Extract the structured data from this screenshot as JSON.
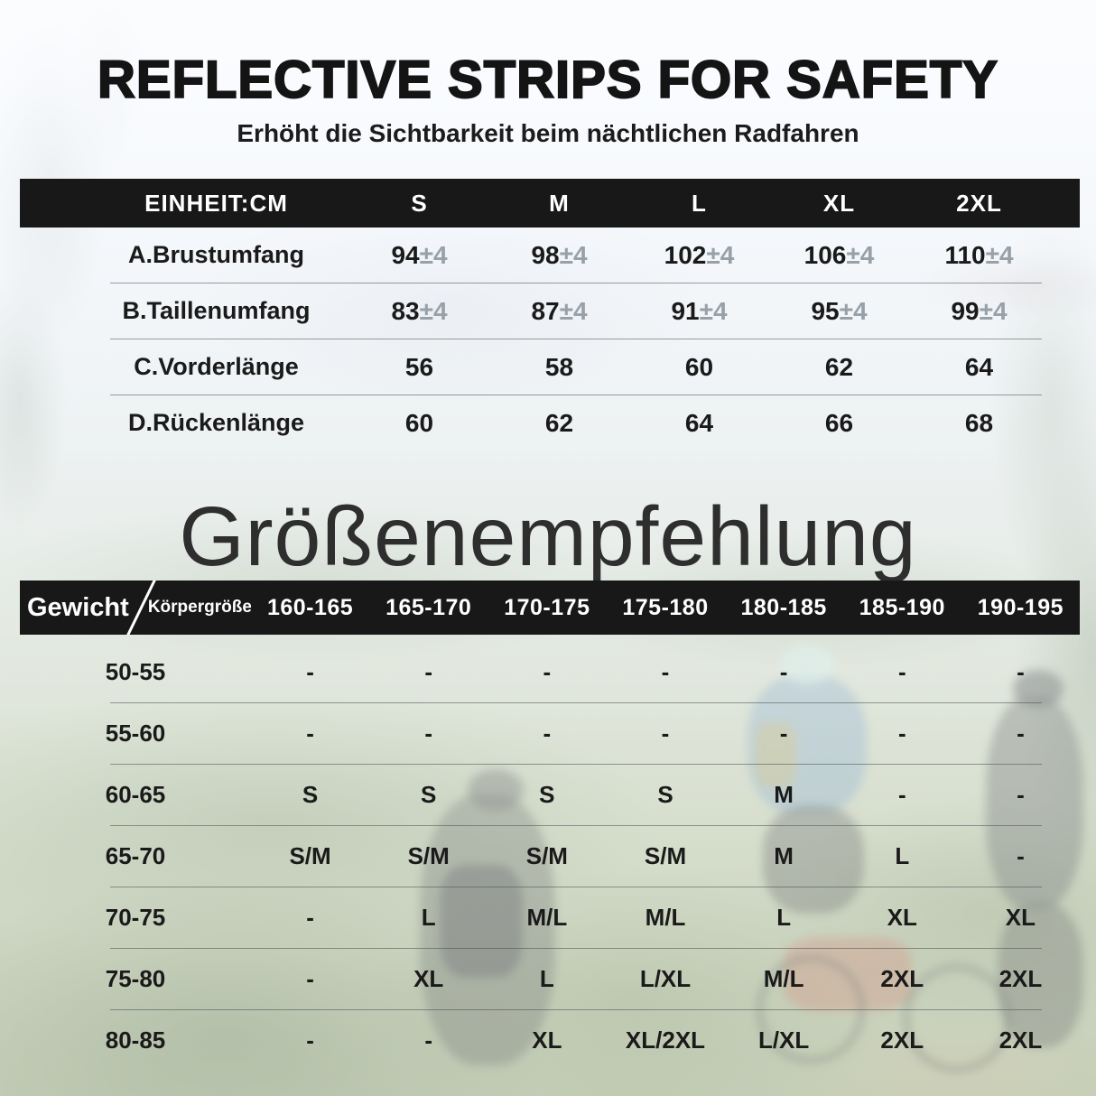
{
  "page": {
    "title": "REFLECTIVE STRIPS FOR SAFETY",
    "subtitle": "Erhöht die Sichtbarkeit beim nächtlichen Radfahren",
    "section2_title": "Größenempfehlung"
  },
  "colors": {
    "header_bar": "#181818",
    "header_text": "#ffffff",
    "body_text": "#1a1a1a",
    "tolerance_text": "#98a0a8"
  },
  "size_table": {
    "unit_label": "EINHEIT:CM",
    "columns": [
      "S",
      "M",
      "L",
      "XL",
      "2XL"
    ],
    "rows": [
      {
        "label": "A.Brustumfang",
        "values": [
          "94",
          "98",
          "102",
          "106",
          "110"
        ],
        "tolerance": "±4"
      },
      {
        "label": "B.Taillenumfang",
        "values": [
          "83",
          "87",
          "91",
          "95",
          "99"
        ],
        "tolerance": "±4"
      },
      {
        "label": "C.Vorderlänge",
        "values": [
          "56",
          "58",
          "60",
          "62",
          "64"
        ],
        "tolerance": ""
      },
      {
        "label": "D.Rückenlänge",
        "values": [
          "60",
          "62",
          "64",
          "66",
          "68"
        ],
        "tolerance": ""
      }
    ]
  },
  "recommendation_table": {
    "weight_label": "Gewicht",
    "height_label": "Körpergröße",
    "columns": [
      "160-165",
      "165-170",
      "170-175",
      "175-180",
      "180-185",
      "185-190",
      "190-195"
    ],
    "rows": [
      {
        "label": "50-55",
        "values": [
          "-",
          "-",
          "-",
          "-",
          "-",
          "-",
          "-"
        ]
      },
      {
        "label": "55-60",
        "values": [
          "-",
          "-",
          "-",
          "-",
          "-",
          "-",
          "-"
        ]
      },
      {
        "label": "60-65",
        "values": [
          "S",
          "S",
          "S",
          "S",
          "M",
          "-",
          "-"
        ]
      },
      {
        "label": "65-70",
        "values": [
          "S/M",
          "S/M",
          "S/M",
          "S/M",
          "M",
          "L",
          "-"
        ]
      },
      {
        "label": "70-75",
        "values": [
          "-",
          "L",
          "M/L",
          "M/L",
          "L",
          "XL",
          "XL"
        ]
      },
      {
        "label": "75-80",
        "values": [
          "-",
          "XL",
          "L",
          "L/XL",
          "M/L",
          "2XL",
          "2XL"
        ]
      },
      {
        "label": "80-85",
        "values": [
          "-",
          "-",
          "XL",
          "XL/2XL",
          "L/XL",
          "2XL",
          "2XL"
        ]
      }
    ]
  }
}
